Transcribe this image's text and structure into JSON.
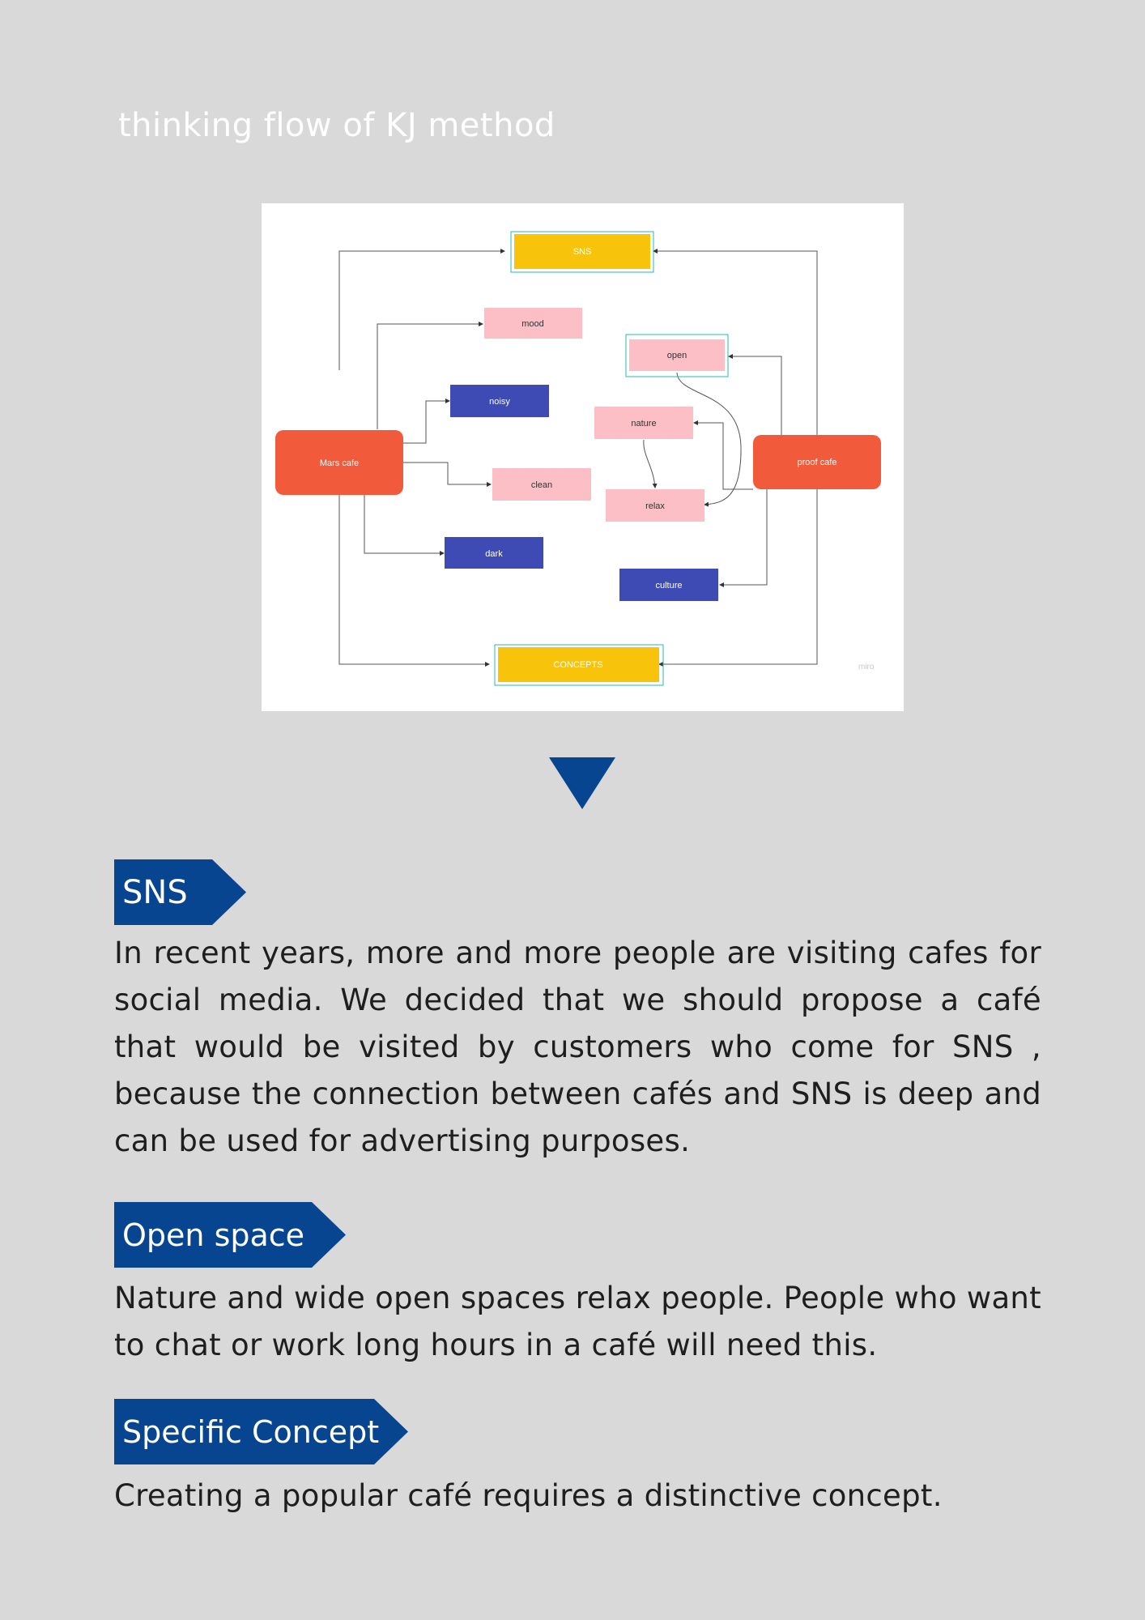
{
  "page_title": "thinking flow of KJ method",
  "diagram": {
    "watermark": "miro",
    "nodes": {
      "sns": "SNS",
      "mood": "mood",
      "open": "open",
      "noisy": "noisy",
      "nature": "nature",
      "mars": "Mars cafe",
      "proof": "proof cafe",
      "clean": "clean",
      "relax": "relax",
      "dark": "dark",
      "culture": "culture",
      "concepts": "CONCEPTS"
    },
    "colors": {
      "yellow": "#f8c40b",
      "pink": "#fbbfc5",
      "navy": "#3f4bb5",
      "orange": "#f25a3c"
    }
  },
  "sections": {
    "sns": {
      "heading": "SNS",
      "body": "In recent years, more and more people are visiting cafes for social media. We decided that we should propose a café that would be visited by customers who come for SNS , because the connection between cafés and SNS is deep and can be used for advertising purposes."
    },
    "open": {
      "heading": "Open space",
      "body": "Nature and wide open spaces relax people. People who want to chat or work long hours in a café will need this."
    },
    "concept": {
      "heading": "Specific Concept",
      "body": "Creating a popular café requires a distinctive concept."
    }
  }
}
